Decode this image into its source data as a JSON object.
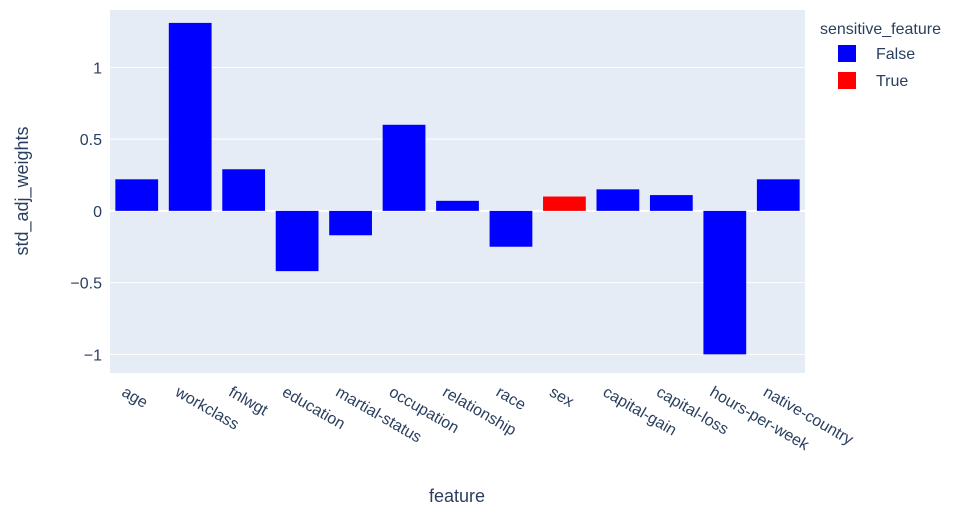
{
  "chart_data": {
    "type": "bar",
    "xlabel": "feature",
    "ylabel": "std_adj_weights",
    "ylim": [
      -1.13,
      1.4
    ],
    "yticks": [
      -1,
      -0.5,
      0,
      0.5,
      1
    ],
    "ytick_labels": [
      "−1",
      "−0.5",
      "0",
      "0.5",
      "1"
    ],
    "grid": true,
    "legend": {
      "title": "sensitive_feature",
      "placement": "right",
      "entries": [
        {
          "name": "False",
          "color": "#0000ff"
        },
        {
          "name": "True",
          "color": "#ff0000"
        }
      ]
    },
    "categories": [
      "age",
      "workclass",
      "fnlwgt",
      "education",
      "martial-status",
      "occupation",
      "relationship",
      "race",
      "sex",
      "capital-gain",
      "capital-loss",
      "hours-per-week",
      "native-country"
    ],
    "values": [
      0.22,
      1.31,
      0.29,
      -0.42,
      -0.17,
      0.6,
      0.07,
      -0.25,
      0.1,
      0.15,
      0.11,
      -1.0,
      0.22
    ],
    "sensitive": [
      false,
      false,
      false,
      false,
      false,
      false,
      false,
      false,
      true,
      false,
      false,
      false,
      false
    ]
  },
  "colors": {
    "plot_background": "#e5ecf6",
    "gridline": "#ffffff",
    "text": "#2a3f5f",
    "false_bar": "#0000ff",
    "true_bar": "#ff0000"
  }
}
